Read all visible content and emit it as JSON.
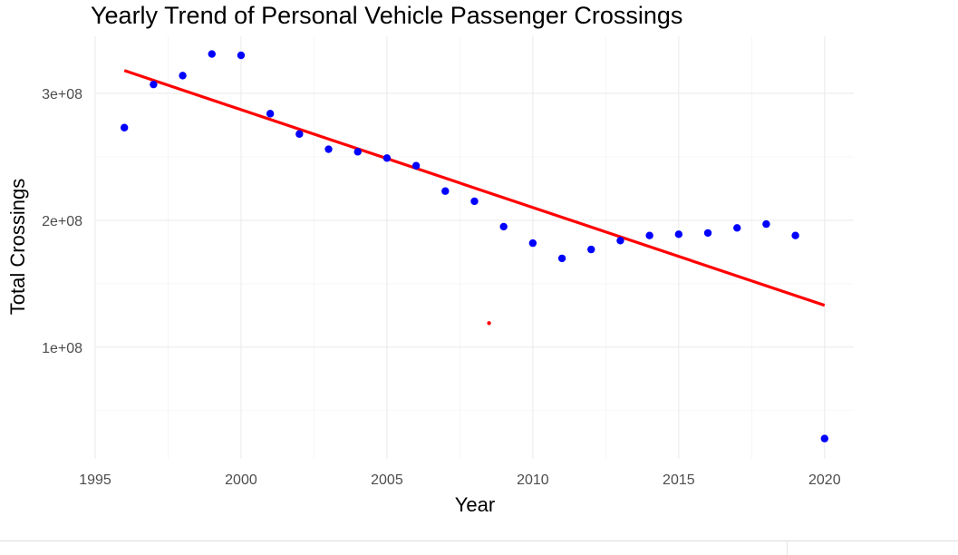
{
  "chart_data": {
    "type": "scatter",
    "title": "Yearly Trend of Personal Vehicle Passenger Crossings",
    "xlabel": "Year",
    "ylabel": "Total Crossings",
    "xlim": [
      1995,
      2021
    ],
    "ylim": [
      12000000,
      345000000
    ],
    "x_ticks": [
      1995,
      2000,
      2005,
      2010,
      2015,
      2020
    ],
    "x_tick_labels": [
      "1995",
      "2000",
      "2005",
      "2010",
      "2015",
      "2020"
    ],
    "y_ticks": [
      100000000,
      200000000,
      300000000
    ],
    "y_tick_labels": [
      "1e+08",
      "2e+08",
      "3e+08"
    ],
    "grid": true,
    "legend": "none",
    "point_color": "#0000ff",
    "trend_color": "#ff0000",
    "x": [
      1996,
      1997,
      1998,
      1999,
      2000,
      2001,
      2002,
      2003,
      2004,
      2005,
      2006,
      2007,
      2008,
      2009,
      2010,
      2011,
      2012,
      2013,
      2014,
      2015,
      2016,
      2017,
      2018,
      2019,
      2020
    ],
    "y": [
      273000000,
      307000000,
      314000000,
      331000000,
      330000000,
      284000000,
      268000000,
      256000000,
      254000000,
      249000000,
      243000000,
      223000000,
      215000000,
      195000000,
      182000000,
      170000000,
      177000000,
      184000000,
      188000000,
      189000000,
      190000000,
      194000000,
      197000000,
      188000000,
      28000000
    ],
    "trend_line": {
      "x": [
        1996,
        2020
      ],
      "y": [
        318000000,
        133000000
      ]
    },
    "annotations": [
      {
        "type": "point",
        "x": 2008.5,
        "y": 119000000,
        "color": "#ff0000"
      }
    ]
  }
}
